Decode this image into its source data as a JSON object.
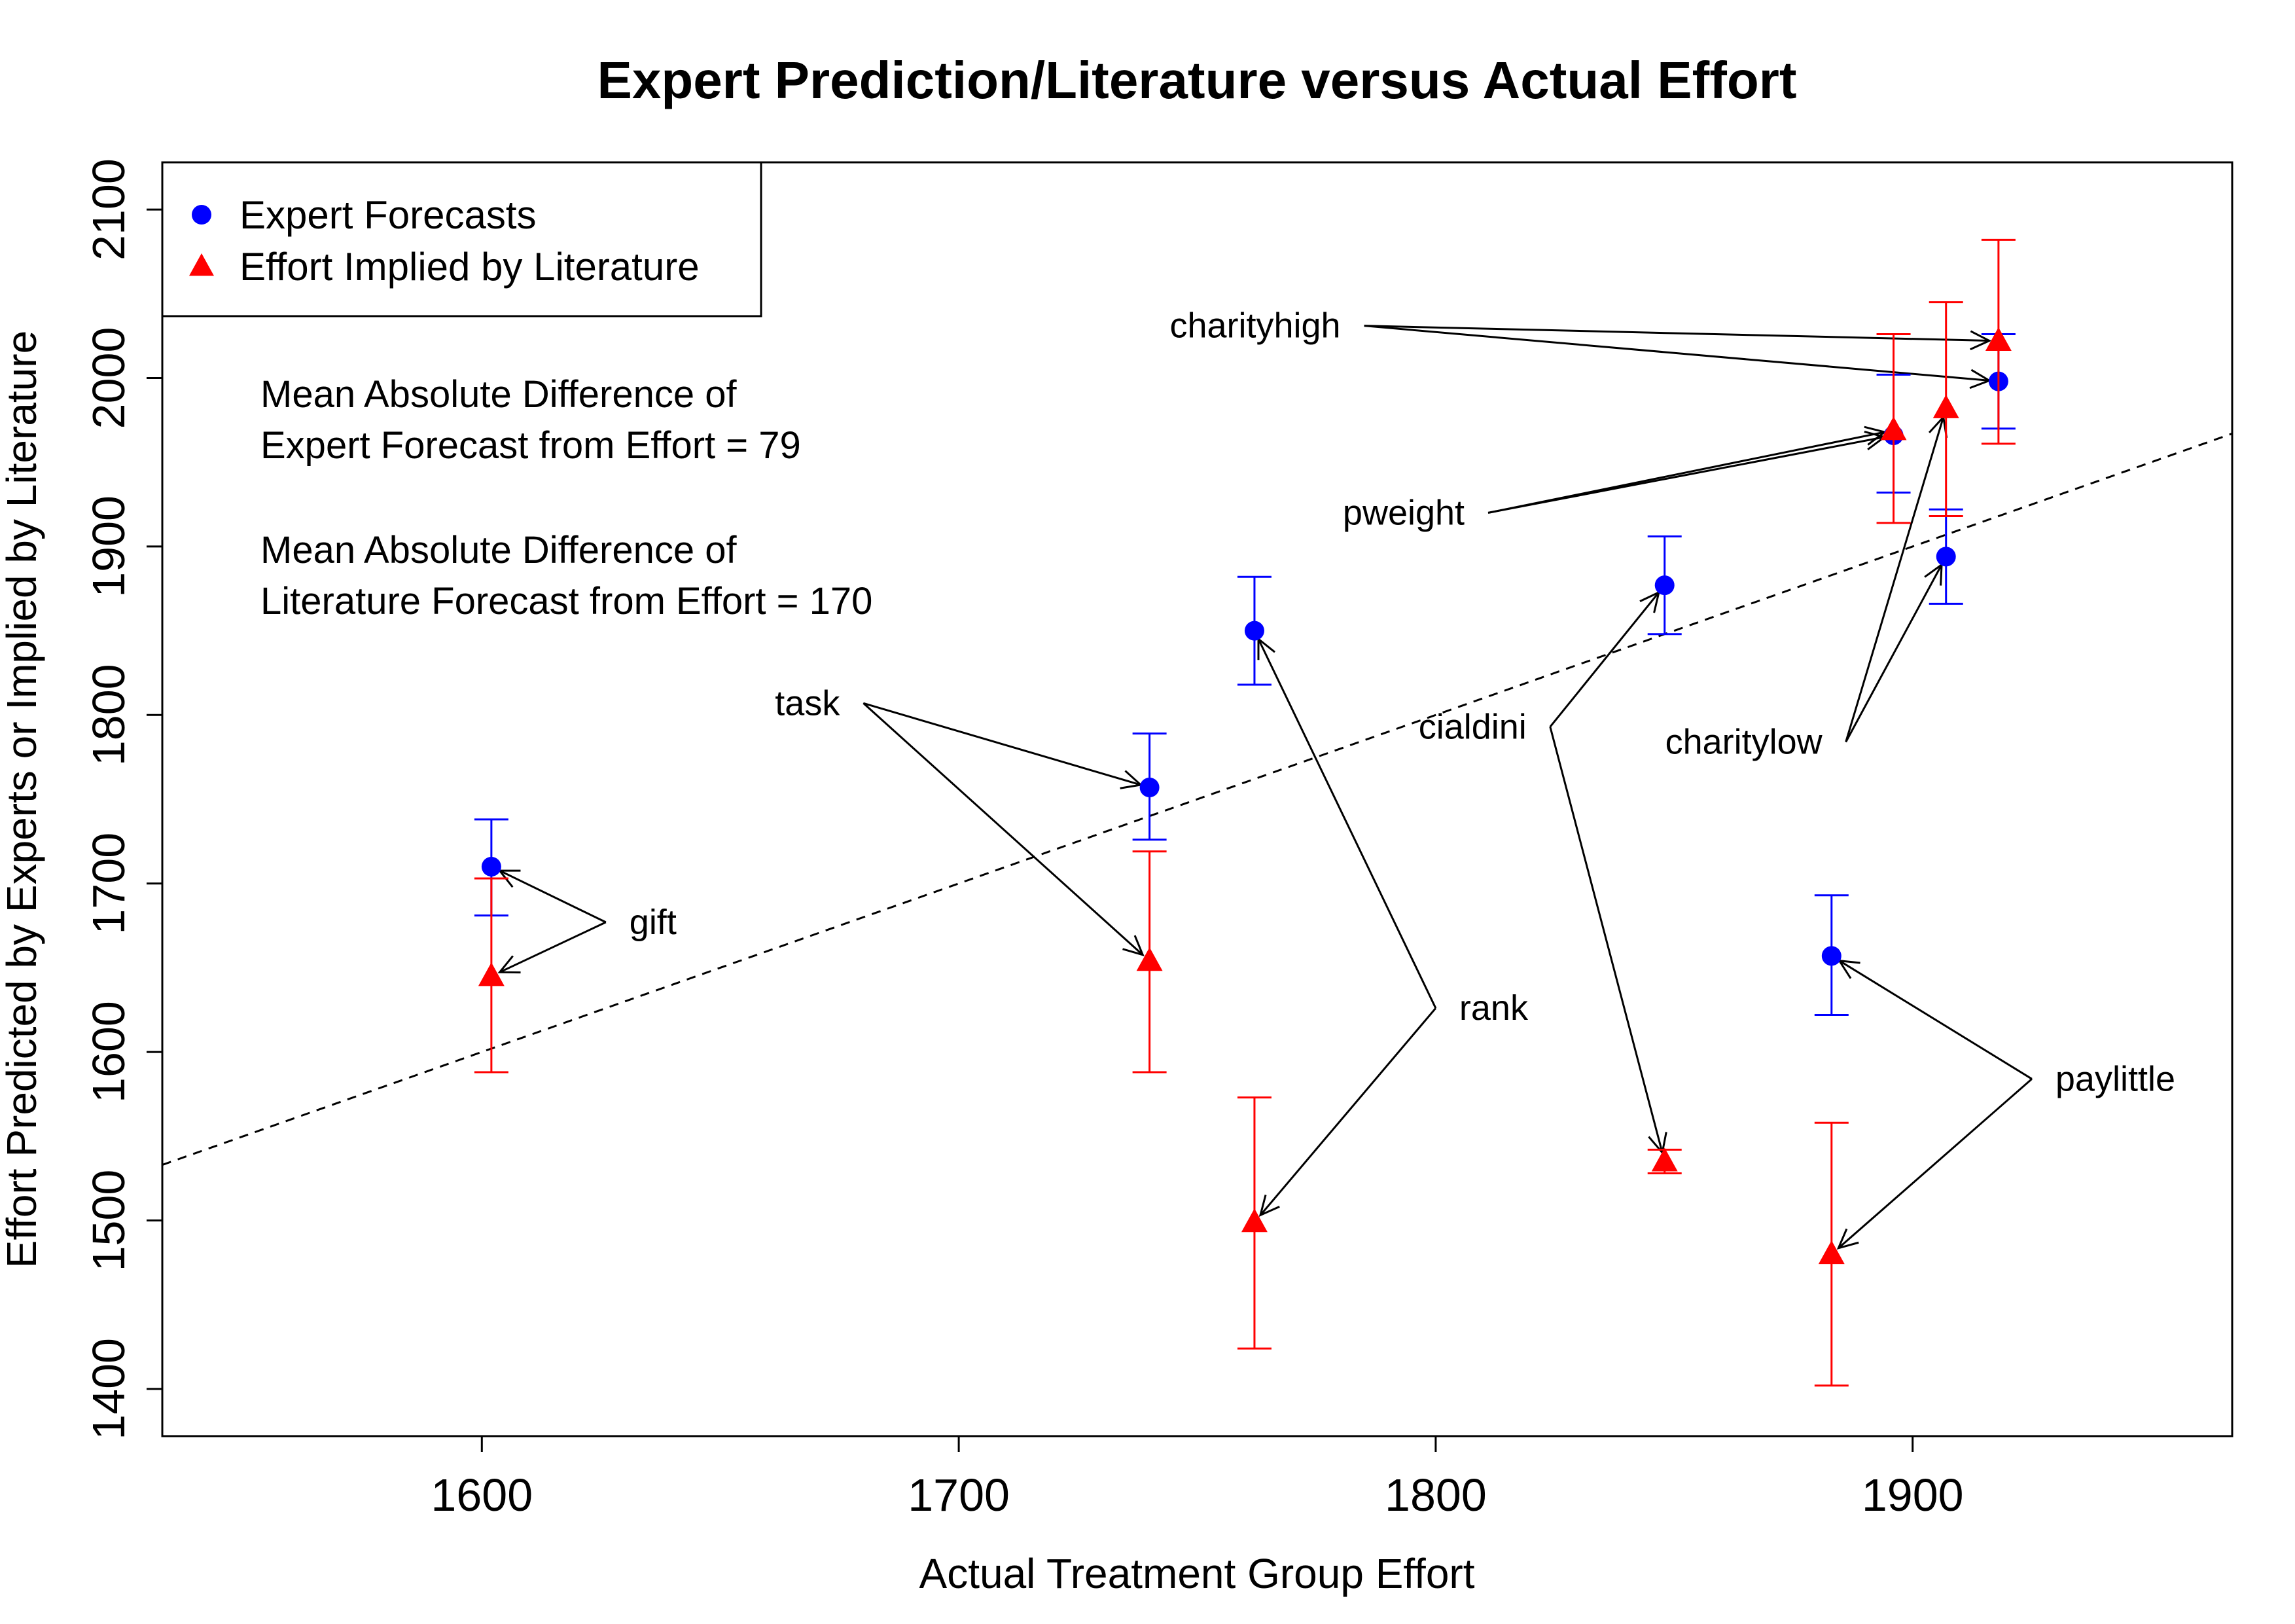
{
  "chart_data": {
    "type": "scatter",
    "title": "Expert Prediction/Literature versus Actual Effort",
    "xlabel": "Actual Treatment Group Effort",
    "ylabel": "Effort Predicted by Experts or Implied by Literature",
    "xlim": [
      1533,
      1967
    ],
    "ylim": [
      1372,
      2128
    ],
    "x_ticks": [
      1600,
      1700,
      1800,
      1900
    ],
    "y_ticks": [
      1400,
      1500,
      1600,
      1700,
      1800,
      1900,
      2000,
      2100
    ],
    "grid": false,
    "legend_position": "top-left",
    "reference_line": {
      "style": "dashed",
      "meaning": "y = x"
    },
    "annotations": [
      {
        "lines": [
          "Mean Absolute Difference of",
          "Expert Forecast from Effort = 79"
        ]
      },
      {
        "lines": [
          "Mean Absolute Difference of",
          "Literature Forecast from Effort = 170"
        ]
      }
    ],
    "series": [
      {
        "name": "Expert Forecasts",
        "marker": "circle",
        "color": "#0000ff",
        "points": [
          {
            "label": "gift",
            "x": 1602,
            "y": 1710,
            "err": [
              1681,
              1738
            ]
          },
          {
            "label": "task",
            "x": 1740,
            "y": 1757,
            "err": [
              1726,
              1789
            ]
          },
          {
            "label": "rank",
            "x": 1762,
            "y": 1850,
            "err": [
              1818,
              1882
            ]
          },
          {
            "label": "cialdini",
            "x": 1848,
            "y": 1877,
            "err": [
              1848,
              1906
            ]
          },
          {
            "label": "paylittle",
            "x": 1883,
            "y": 1657,
            "err": [
              1622,
              1693
            ]
          },
          {
            "label": "pweight",
            "x": 1896,
            "y": 1966,
            "err": [
              1932,
              2002
            ]
          },
          {
            "label": "charitylow",
            "x": 1907,
            "y": 1894,
            "err": [
              1866,
              1922
            ]
          },
          {
            "label": "charityhigh",
            "x": 1918,
            "y": 1998,
            "err": [
              1970,
              2026
            ]
          }
        ]
      },
      {
        "name": "Effort Implied by Literature",
        "marker": "triangle",
        "color": "#ff0000",
        "points": [
          {
            "label": "gift",
            "x": 1602,
            "y": 1645,
            "err": [
              1588,
              1703
            ]
          },
          {
            "label": "task",
            "x": 1740,
            "y": 1654,
            "err": [
              1588,
              1719
            ]
          },
          {
            "label": "rank",
            "x": 1762,
            "y": 1499,
            "err": [
              1424,
              1573
            ]
          },
          {
            "label": "cialdini",
            "x": 1848,
            "y": 1535,
            "err": [
              1528,
              1542
            ]
          },
          {
            "label": "paylittle",
            "x": 1883,
            "y": 1480,
            "err": [
              1402,
              1558
            ]
          },
          {
            "label": "pweight",
            "x": 1896,
            "y": 1969,
            "err": [
              1914,
              2026
            ]
          },
          {
            "label": "charitylow",
            "x": 1907,
            "y": 1982,
            "err": [
              1918,
              2045
            ]
          },
          {
            "label": "charityhigh",
            "x": 1918,
            "y": 2022,
            "err": [
              1961,
              2082
            ]
          }
        ]
      }
    ],
    "label_callouts": [
      {
        "text": "gift",
        "tx": 1626,
        "ty": 1677,
        "targets": [
          "gift"
        ]
      },
      {
        "text": "task",
        "tx": 1680,
        "ty": 1807,
        "targets": [
          "task"
        ]
      },
      {
        "text": "rank",
        "tx": 1800,
        "ty": 1626,
        "targets": [
          "rank"
        ]
      },
      {
        "text": "cialdini",
        "tx": 1824,
        "ty": 1793,
        "targets": [
          "cialdini"
        ]
      },
      {
        "text": "paylittle",
        "tx": 1925,
        "ty": 1584,
        "targets": [
          "paylittle"
        ]
      },
      {
        "text": "pweight",
        "tx": 1811,
        "ty": 1920,
        "targets": [
          "pweight"
        ]
      },
      {
        "text": "charitylow",
        "tx": 1886,
        "ty": 1784,
        "targets": [
          "charitylow"
        ]
      },
      {
        "text": "charityhigh",
        "tx": 1785,
        "ty": 2031,
        "targets": [
          "charityhigh"
        ]
      }
    ]
  }
}
